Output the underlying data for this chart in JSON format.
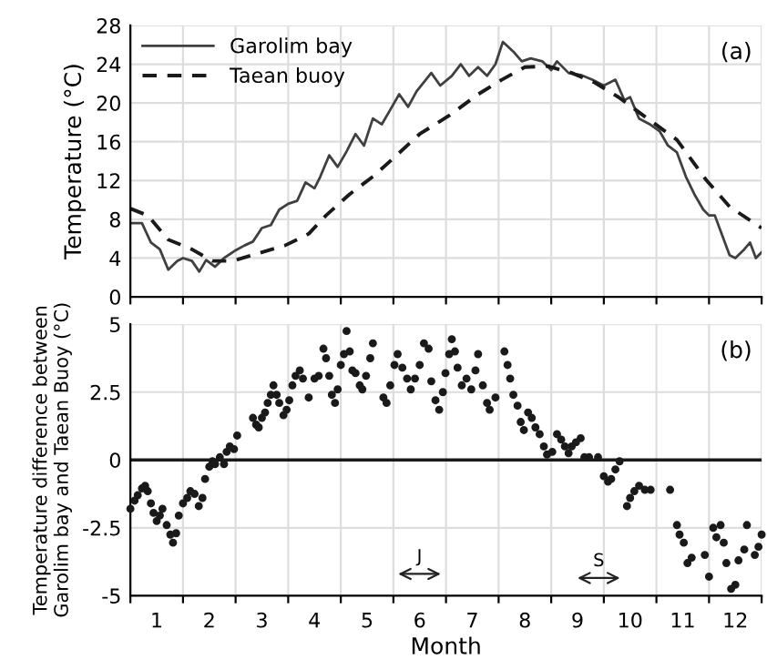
{
  "chart_data": [
    {
      "type": "line",
      "ylabel": "Temperature (°C)",
      "annotations": [
        "(a)"
      ],
      "xlim": [
        0,
        12
      ],
      "ylim": [
        0,
        28
      ],
      "xticks": [
        {
          "value": 0,
          "label": null
        },
        {
          "value": 1,
          "label": null
        },
        {
          "value": 2,
          "label": null
        },
        {
          "value": 3,
          "label": null
        },
        {
          "value": 4,
          "label": null
        },
        {
          "value": 5,
          "label": null
        },
        {
          "value": 6,
          "label": null
        },
        {
          "value": 7,
          "label": null
        },
        {
          "value": 8,
          "label": null
        },
        {
          "value": 9,
          "label": null
        },
        {
          "value": 10,
          "label": null
        },
        {
          "value": 11,
          "label": null
        },
        {
          "value": 12,
          "label": null
        }
      ],
      "yticks": [
        0,
        4,
        8,
        12,
        16,
        20,
        24,
        28
      ],
      "tick_labels": "y",
      "grid": true,
      "legend": "top left",
      "marker": "none",
      "series": [
        {
          "name": "Garolim bay",
          "color": "#404040",
          "line_style": "solid",
          "x": [
            0,
            0.22,
            0.39,
            0.56,
            0.72,
            0.89,
            1.0,
            1.17,
            1.31,
            1.44,
            1.61,
            1.78,
            2.0,
            2.17,
            2.33,
            2.5,
            2.67,
            2.83,
            3.0,
            3.17,
            3.33,
            3.5,
            3.61,
            3.78,
            3.94,
            4.11,
            4.28,
            4.44,
            4.61,
            4.78,
            4.94,
            5.11,
            5.28,
            5.44,
            5.72,
            5.89,
            6.11,
            6.28,
            6.44,
            6.61,
            6.78,
            6.94,
            7.08,
            7.28,
            7.44,
            7.61,
            7.83,
            8.0,
            8.11,
            8.33,
            8.56,
            8.78,
            9.0,
            9.22,
            9.39,
            9.5,
            9.67,
            9.89,
            10.06,
            10.22,
            10.39,
            10.56,
            10.72,
            10.89,
            11.0,
            11.11,
            11.22,
            11.39,
            11.5,
            11.67,
            11.78,
            11.89,
            12.0
          ],
          "values": [
            7.6,
            7.6,
            5.6,
            4.9,
            2.8,
            3.7,
            4.0,
            3.7,
            2.6,
            3.8,
            3.1,
            4.0,
            4.8,
            5.3,
            5.7,
            7.1,
            7.4,
            9.0,
            9.6,
            9.9,
            11.8,
            11.2,
            12.4,
            14.6,
            13.4,
            15.0,
            16.8,
            15.6,
            18.4,
            17.8,
            19.3,
            20.9,
            19.6,
            21.2,
            23.1,
            21.8,
            22.8,
            24.0,
            22.8,
            23.7,
            22.8,
            24.0,
            26.3,
            25.3,
            24.3,
            24.6,
            24.3,
            23.4,
            24.3,
            23.1,
            22.9,
            22.4,
            21.8,
            22.4,
            20.3,
            20.6,
            18.4,
            17.75,
            17.1,
            15.6,
            14.9,
            12.4,
            10.6,
            9.0,
            8.4,
            8.4,
            6.8,
            4.3,
            4.0,
            4.9,
            5.6,
            4.0,
            4.6
          ]
        },
        {
          "name": "Taean buoy",
          "color": "#1a1a1a",
          "line_style": "dashed",
          "x": [
            0,
            0.33,
            0.72,
            1.17,
            1.56,
            1.94,
            2.5,
            2.94,
            3.39,
            3.72,
            4.17,
            4.61,
            5.06,
            5.5,
            6.06,
            6.61,
            7.06,
            7.5,
            7.94,
            8.39,
            8.83,
            9.28,
            9.83,
            10.39,
            10.94,
            11.39,
            12.0
          ],
          "values": [
            9.1,
            8.4,
            5.9,
            4.9,
            3.7,
            3.7,
            4.6,
            5.3,
            6.5,
            8.4,
            10.6,
            12.4,
            14.6,
            16.8,
            18.7,
            20.9,
            22.4,
            23.7,
            23.8,
            23.1,
            22.1,
            20.6,
            18.4,
            16.2,
            12.1,
            9.3,
            7.1
          ]
        }
      ]
    },
    {
      "type": "scatter",
      "xlabel": "Month",
      "ylabel": "Temperature difference between\nGarolim bay and Taean Buoy (°C)",
      "annotations": [
        "(b)",
        "J",
        "S"
      ],
      "xlim": [
        0,
        12
      ],
      "ylim": [
        -5,
        5
      ],
      "xticks": [
        {
          "value": 0,
          "label": null
        },
        {
          "value": 0.5,
          "label": "1"
        },
        {
          "value": 1,
          "label": null
        },
        {
          "value": 1.5,
          "label": "2"
        },
        {
          "value": 2,
          "label": null
        },
        {
          "value": 2.5,
          "label": "3"
        },
        {
          "value": 3,
          "label": null
        },
        {
          "value": 3.5,
          "label": "4"
        },
        {
          "value": 4,
          "label": null
        },
        {
          "value": 4.5,
          "label": "5"
        },
        {
          "value": 5,
          "label": null
        },
        {
          "value": 5.5,
          "label": "6"
        },
        {
          "value": 6,
          "label": null
        },
        {
          "value": 6.5,
          "label": "7"
        },
        {
          "value": 7,
          "label": null
        },
        {
          "value": 7.5,
          "label": "8"
        },
        {
          "value": 8,
          "label": null
        },
        {
          "value": 8.5,
          "label": "9"
        },
        {
          "value": 9,
          "label": null
        },
        {
          "value": 9.5,
          "label": "10"
        },
        {
          "value": 10,
          "label": null
        },
        {
          "value": 10.5,
          "label": "11"
        },
        {
          "value": 11,
          "label": null
        },
        {
          "value": 11.5,
          "label": "12"
        },
        {
          "value": 12,
          "label": null
        }
      ],
      "yticks": [
        5,
        2.5,
        0,
        -2.5,
        -5
      ],
      "grid": true,
      "legend": false,
      "marker": "circle",
      "ref_lines": [
        {
          "axis": "y",
          "value": 0,
          "label": null,
          "color": "#1a1a1a"
        }
      ],
      "series": [
        {
          "color": "#1a1a1a",
          "x": [
            0.0,
            0.08,
            0.14,
            0.22,
            0.28,
            0.33,
            0.39,
            0.44,
            0.5,
            0.56,
            0.61,
            0.69,
            0.76,
            0.81,
            0.87,
            0.92,
            1.0,
            1.08,
            1.14,
            1.22,
            1.3,
            1.37,
            1.42,
            1.5,
            1.56,
            1.61,
            1.7,
            1.78,
            1.83,
            1.89,
            1.97,
            2.03,
            2.33,
            2.39,
            2.44,
            2.5,
            2.56,
            2.61,
            2.67,
            2.72,
            2.78,
            2.83,
            2.91,
            2.97,
            3.02,
            3.08,
            3.14,
            3.22,
            3.28,
            3.39,
            3.5,
            3.58,
            3.67,
            3.72,
            3.78,
            3.83,
            3.89,
            3.94,
            4.0,
            4.06,
            4.11,
            4.17,
            4.22,
            4.28,
            4.36,
            4.41,
            4.48,
            4.56,
            4.61,
            4.81,
            4.87,
            4.94,
            5.02,
            5.08,
            5.17,
            5.26,
            5.33,
            5.41,
            5.5,
            5.58,
            5.67,
            5.72,
            5.8,
            5.87,
            5.94,
            5.99,
            6.06,
            6.11,
            6.17,
            6.22,
            6.3,
            6.39,
            6.48,
            6.56,
            6.61,
            6.7,
            6.78,
            6.83,
            6.94,
            7.11,
            7.17,
            7.22,
            7.28,
            7.36,
            7.42,
            7.48,
            7.56,
            7.63,
            7.7,
            7.78,
            7.86,
            7.92,
            8.02,
            8.11,
            8.19,
            8.26,
            8.33,
            8.39,
            8.47,
            8.56,
            8.63,
            8.72,
            8.89,
            9.0,
            9.08,
            9.14,
            9.22,
            9.3,
            9.44,
            9.5,
            9.58,
            9.67,
            9.78,
            9.89,
            10.26,
            10.39,
            10.44,
            10.52,
            10.59,
            10.67,
            10.92,
            11.0,
            11.08,
            11.14,
            11.22,
            11.28,
            11.33,
            11.42,
            11.5,
            11.56,
            11.67,
            11.72,
            11.87,
            11.94,
            12.0
          ],
          "values": [
            -1.8,
            -1.5,
            -1.3,
            -1.05,
            -0.95,
            -1.15,
            -1.6,
            -1.95,
            -2.25,
            -2.05,
            -1.8,
            -2.4,
            -2.75,
            -3.05,
            -2.7,
            -2.05,
            -1.6,
            -1.4,
            -1.15,
            -1.25,
            -1.7,
            -1.4,
            -0.7,
            -0.25,
            -0.05,
            -0.15,
            0.1,
            -0.15,
            0.3,
            0.5,
            0.4,
            0.9,
            1.55,
            1.3,
            1.2,
            1.55,
            1.75,
            2.1,
            2.4,
            2.75,
            2.4,
            2.1,
            1.65,
            1.85,
            2.2,
            2.75,
            3.1,
            3.3,
            3.0,
            2.3,
            3.0,
            3.1,
            4.1,
            3.75,
            3.1,
            2.4,
            2.1,
            2.6,
            3.5,
            3.9,
            4.75,
            4.0,
            3.3,
            3.2,
            2.75,
            2.6,
            3.1,
            3.75,
            4.3,
            2.3,
            2.1,
            2.75,
            3.5,
            3.9,
            3.4,
            3.0,
            2.6,
            3.0,
            3.5,
            4.3,
            4.1,
            2.9,
            2.2,
            1.85,
            2.5,
            3.2,
            3.9,
            4.45,
            4.0,
            3.4,
            2.75,
            3.0,
            2.6,
            3.3,
            3.9,
            2.75,
            2.1,
            1.85,
            2.3,
            4.0,
            3.5,
            3.0,
            2.4,
            2.0,
            1.4,
            1.1,
            1.75,
            1.55,
            1.2,
            0.95,
            0.5,
            0.2,
            0.3,
            0.95,
            0.75,
            0.5,
            0.25,
            0.5,
            0.65,
            0.8,
            0.1,
            0.1,
            0.1,
            -0.6,
            -0.8,
            -0.7,
            -0.35,
            -0.05,
            -1.7,
            -1.4,
            -1.15,
            -0.95,
            -1.1,
            -1.1,
            -1.1,
            -2.4,
            -2.75,
            -3.05,
            -3.8,
            -3.6,
            -3.5,
            -4.3,
            -2.5,
            -2.85,
            -2.4,
            -3.05,
            -3.8,
            -4.75,
            -4.6,
            -3.7,
            -3.3,
            -2.4,
            -3.5,
            -3.2,
            -2.75
          ]
        }
      ]
    }
  ]
}
